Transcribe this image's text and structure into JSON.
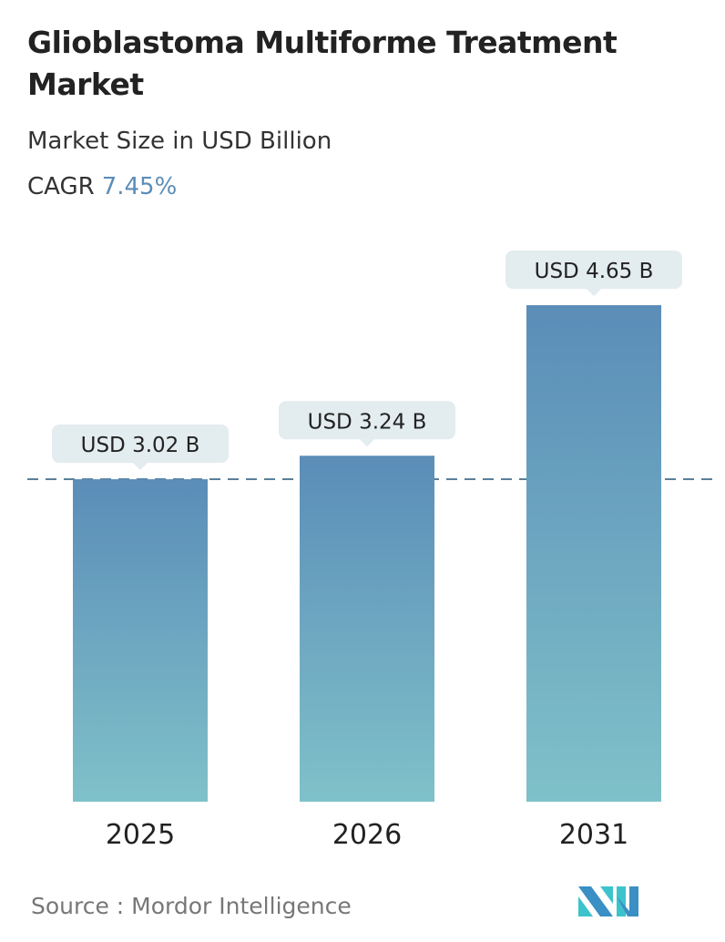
{
  "header": {
    "title": "Glioblastoma Multiforme Treatment Market",
    "subtitle": "Market Size in USD Billion",
    "cagr_label": "CAGR",
    "cagr_value": "7.45%"
  },
  "chart_data": {
    "type": "bar",
    "categories": [
      "2025",
      "2026",
      "2031"
    ],
    "values": [
      3.02,
      3.24,
      4.65
    ],
    "data_labels": [
      "USD 3.02 B",
      "USD 3.24 B",
      "USD 4.65 B"
    ],
    "ylim": [
      0,
      4.65
    ],
    "reference_line": 3.02,
    "grid": false,
    "colors": {
      "bar_top": "#5b8db8",
      "bar_bottom": "#7fc1c9",
      "label_bg": "#e3ecef",
      "dash": "#5a7f99"
    }
  },
  "footer": {
    "source": "Source :  Mordor Intelligence",
    "logo_text": "MI"
  }
}
